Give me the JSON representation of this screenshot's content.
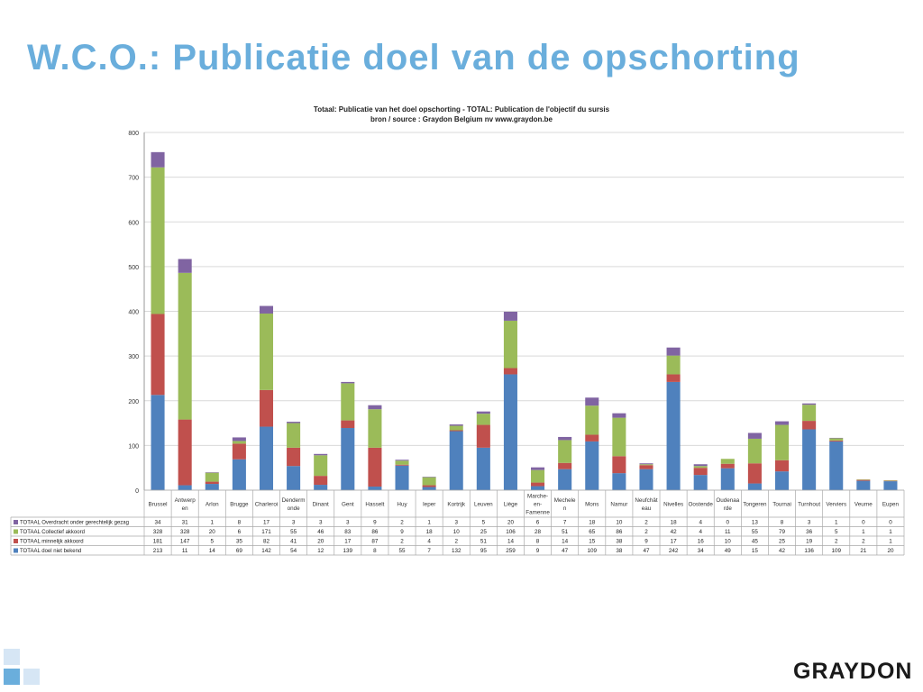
{
  "slide": {
    "title": "W.C.O.: Publicatie doel van de opschorting",
    "logo_text": "GRAYDON"
  },
  "chart_data": {
    "type": "bar",
    "stacked": true,
    "title": "Totaal: Publicatie van het doel opschorting -  TOTAL: Publication  de l'objectif du sursis",
    "subtitle": "bron / source :     Graydon Belgium nv     www.graydon.be",
    "xlabel": "",
    "ylabel": "",
    "ylim": [
      0,
      800
    ],
    "yticks": [
      "0",
      "100",
      "200",
      "300",
      "400",
      "500",
      "600",
      "700",
      "800"
    ],
    "grid": true,
    "categories": [
      "Brussel",
      "Antwerpen",
      "Arlon",
      "Brugge",
      "Charleroi",
      "Dendermonde",
      "Dinant",
      "Gent",
      "Hasselt",
      "Huy",
      "Ieper",
      "Kortrijk",
      "Leuven",
      "Liège",
      "Marche-en-Famenne",
      "Mechelen",
      "Mons",
      "Namur",
      "Neufchâteau",
      "Nivelles",
      "Oostende",
      "Oudenaarde",
      "Tongeren",
      "Tournai",
      "Turnhout",
      "Verviers",
      "Veurne",
      "Eupen"
    ],
    "category_display": [
      [
        "Brussel"
      ],
      [
        "Antwerp",
        "en"
      ],
      [
        "Arlon"
      ],
      [
        "Brugge"
      ],
      [
        "Charleroi"
      ],
      [
        "Denderm",
        "onde"
      ],
      [
        "Dinant"
      ],
      [
        "Gent"
      ],
      [
        "Hasselt"
      ],
      [
        "Huy"
      ],
      [
        "Ieper"
      ],
      [
        "Kortrijk"
      ],
      [
        "Leuven"
      ],
      [
        "Liège"
      ],
      [
        "Marche-",
        "en-",
        "Famenne"
      ],
      [
        "Mechele",
        "n"
      ],
      [
        "Mons"
      ],
      [
        "Namur"
      ],
      [
        "Neufchât",
        "eau"
      ],
      [
        "Nivelles"
      ],
      [
        "Oostende"
      ],
      [
        "Oudenaa",
        "rde"
      ],
      [
        "Tongeren"
      ],
      [
        "Tournai"
      ],
      [
        "Turnhout"
      ],
      [
        "Verviers"
      ],
      [
        "Veurne"
      ],
      [
        "Eupen"
      ]
    ],
    "series": [
      {
        "name": "TOTAAL doel niet bekend",
        "color": "#4f81bd",
        "values": [
          213,
          11,
          14,
          69,
          142,
          54,
          12,
          139,
          8,
          55,
          7,
          132,
          95,
          259,
          9,
          47,
          109,
          38,
          47,
          242,
          34,
          49,
          15,
          42,
          136,
          109,
          21,
          20
        ]
      },
      {
        "name": "TOTAAL minnelijk akkoord",
        "color": "#c0504d",
        "values": [
          181,
          147,
          5,
          35,
          82,
          41,
          20,
          17,
          87,
          2,
          4,
          2,
          51,
          14,
          8,
          14,
          15,
          38,
          9,
          17,
          16,
          10,
          45,
          25,
          19,
          2,
          2,
          1
        ]
      },
      {
        "name": "TOTAAL Collectief akkoord",
        "color": "#9bbb59",
        "values": [
          328,
          328,
          20,
          6,
          171,
          55,
          46,
          83,
          86,
          9,
          18,
          10,
          25,
          106,
          28,
          51,
          65,
          86,
          2,
          42,
          4,
          11,
          55,
          79,
          36,
          5,
          1,
          1
        ]
      },
      {
        "name": "TOTAAL Overdracht onder gerechtelijk gezag",
        "color": "#8064a2",
        "values": [
          34,
          31,
          1,
          8,
          17,
          3,
          3,
          3,
          9,
          2,
          1,
          3,
          5,
          20,
          6,
          7,
          18,
          10,
          2,
          18,
          4,
          0,
          13,
          8,
          3,
          1,
          0,
          0
        ]
      }
    ],
    "table_row_order": [
      3,
      2,
      1,
      0
    ]
  }
}
